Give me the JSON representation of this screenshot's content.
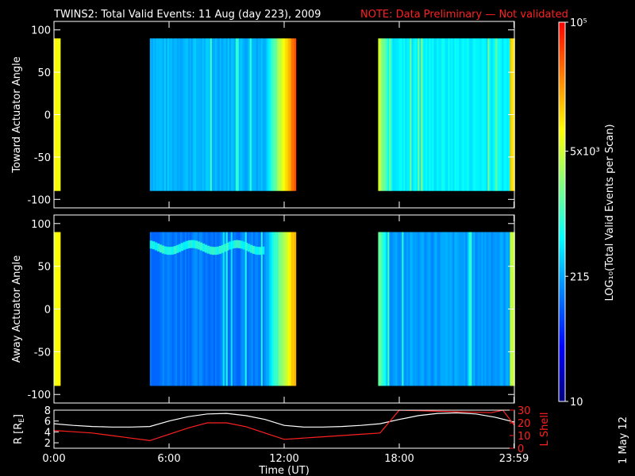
{
  "title": {
    "main": "TWINS2: Total Valid Events: 11 Aug (day 223), 2009",
    "note": "NOTE: Data Preliminary — Not validated",
    "note_color": "#ff2020"
  },
  "date_stamp": "1 May 12",
  "chart_data": [
    {
      "type": "heatmap",
      "name": "toward",
      "ylabel": "Toward Actuator Angle",
      "ylim": [
        -110,
        110
      ],
      "yticks": [
        100,
        50,
        0,
        -50,
        -100
      ],
      "xlim": [
        0,
        24
      ],
      "coverage": [
        {
          "start": 0.0,
          "end": 0.3,
          "level": 0.72
        },
        {
          "start": 5.0,
          "end": 12.6,
          "level": 0.35
        },
        {
          "start": 16.9,
          "end": 24.0,
          "level": 0.42
        }
      ]
    },
    {
      "type": "heatmap",
      "name": "away",
      "ylabel": "Away Actuator Angle",
      "ylim": [
        -110,
        110
      ],
      "yticks": [
        100,
        50,
        0,
        -50,
        -100
      ],
      "xlim": [
        0,
        24
      ],
      "coverage": [
        {
          "start": 0.0,
          "end": 0.3,
          "level": 0.72
        },
        {
          "start": 5.0,
          "end": 12.6,
          "level": 0.28
        },
        {
          "start": 16.9,
          "end": 24.0,
          "level": 0.32
        }
      ]
    },
    {
      "type": "line",
      "name": "ephemeris",
      "xlabel": "Time (UT)",
      "ylabel_left": "R [R_E]",
      "ylabel_left_main": "R [R",
      "ylabel_left_sub": "E",
      "ylabel_left_end": "]",
      "ylabel_right": "L Shell",
      "ylim_left": [
        1,
        8
      ],
      "yticks_left": [
        2,
        4,
        6,
        8
      ],
      "ylim_right": [
        0,
        30
      ],
      "yticks_right": [
        0,
        10,
        20,
        30
      ],
      "xticks": [
        "0:00",
        "6:00",
        "12:00",
        "18:00",
        "23:59"
      ],
      "xtick_values": [
        0,
        6,
        12,
        18,
        23.98
      ],
      "series": [
        {
          "color": "#ffffff",
          "x": [
            0,
            1,
            2,
            3,
            4,
            5,
            6,
            7,
            8,
            9,
            10,
            11,
            12,
            13,
            14,
            15,
            16,
            17,
            18,
            19,
            20,
            21,
            22,
            23,
            24
          ],
          "y": [
            5.5,
            5.2,
            5.0,
            4.9,
            4.9,
            5.0,
            6.0,
            6.8,
            7.3,
            7.4,
            7.0,
            6.3,
            5.2,
            4.9,
            4.9,
            5.0,
            5.2,
            5.5,
            6.3,
            7.0,
            7.4,
            7.5,
            7.3,
            6.7,
            5.8
          ]
        },
        {
          "color": "#ff2020",
          "axis": "right",
          "x": [
            0,
            1,
            2,
            3,
            4,
            5,
            6,
            7,
            8,
            9,
            10,
            11,
            12,
            13,
            14,
            15,
            16,
            17,
            18,
            22.8,
            23.4,
            24
          ],
          "y": [
            14,
            13,
            12,
            10,
            8,
            6,
            11,
            16,
            20,
            20,
            17,
            12,
            7,
            8,
            9,
            10,
            11,
            12,
            31,
            28,
            31,
            18
          ]
        }
      ]
    }
  ],
  "colorbar": {
    "label": "LOG₁₀(Total Valid Events per Scan)",
    "ticks": [
      {
        "label": "10",
        "frac": 0.0
      },
      {
        "label": "215",
        "frac": 0.33
      },
      {
        "label": "5x10³",
        "frac": 0.66
      },
      {
        "label": "10⁵",
        "frac": 1.0
      }
    ],
    "stops": [
      "#000080",
      "#0000ff",
      "#0080ff",
      "#00ffff",
      "#80ff80",
      "#ffff00",
      "#ff8000",
      "#ff0000"
    ]
  }
}
